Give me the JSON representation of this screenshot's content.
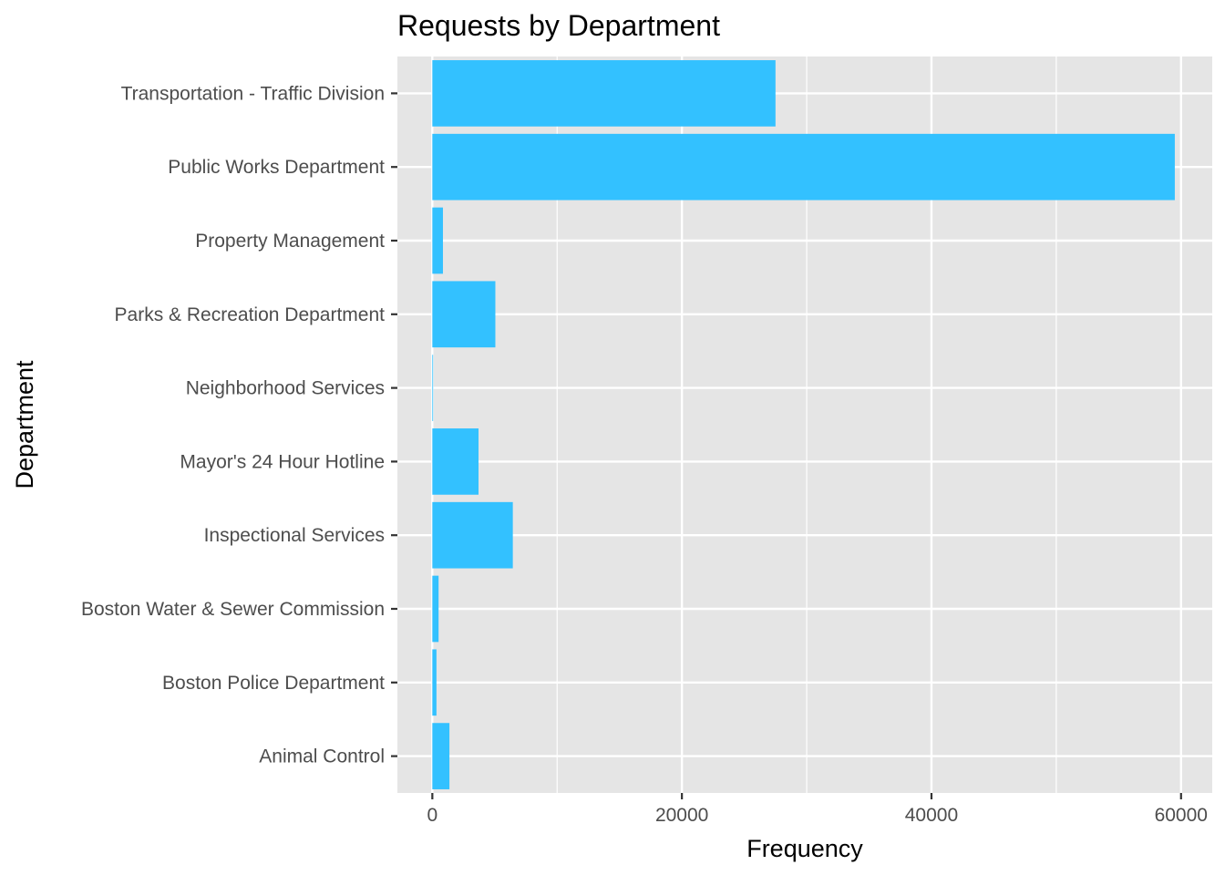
{
  "chart_data": {
    "type": "bar",
    "orientation": "horizontal",
    "title": "Requests by Department",
    "xlabel": "Frequency",
    "ylabel": "Department",
    "categories": [
      "Transportation - Traffic Division",
      "Public Works Department",
      "Property Management",
      "Parks & Recreation Department",
      "Neighborhood Services",
      "Mayor's 24 Hour Hotline",
      "Inspectional Services",
      "Boston Water & Sewer Commission",
      "Boston Police Department",
      "Animal Control"
    ],
    "values": [
      27500,
      59500,
      850,
      5050,
      60,
      3700,
      6450,
      500,
      330,
      1370
    ],
    "xlim": [
      -2800,
      62500
    ],
    "xticks": [
      0,
      20000,
      40000,
      60000
    ],
    "xtick_labels": [
      "0",
      "20000",
      "40000",
      "60000"
    ],
    "grid": true,
    "bar_color": "#33c1ff",
    "panel_color": "#e5e5e5",
    "grid_color": "#ffffff"
  }
}
